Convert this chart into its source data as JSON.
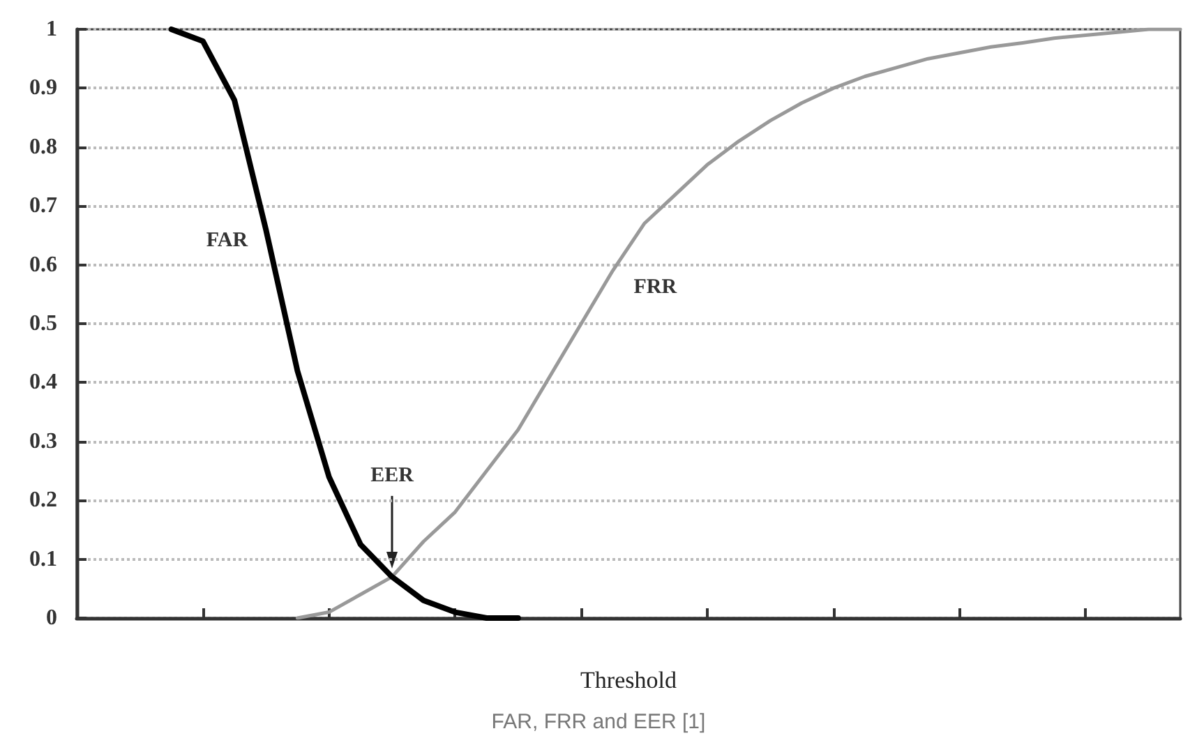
{
  "chart_data": {
    "type": "line",
    "xlabel": "Threshold",
    "tick_labels": "y",
    "grid": "y",
    "legend": false,
    "marker": "none",
    "categories": [
      null,
      null,
      null,
      null,
      null,
      null,
      null,
      null,
      null,
      null,
      null,
      null,
      null,
      null,
      null,
      null,
      null,
      null,
      null,
      null,
      null,
      null,
      null,
      null,
      null,
      null,
      null,
      null,
      null,
      null,
      null,
      null,
      null,
      null,
      null,
      null
    ],
    "ylim": [
      0,
      1
    ],
    "yticks": [
      0,
      0.1,
      0.2,
      0.3,
      0.4,
      0.5,
      0.6,
      0.7,
      0.8,
      0.9,
      1
    ],
    "series": [
      {
        "name": "FAR",
        "color": "#000000",
        "values": [
          null,
          null,
          null,
          1,
          0.98,
          0.88,
          0.66,
          0.42,
          0.24,
          0.125,
          0.07,
          0.03,
          0.01,
          0,
          0,
          null,
          null,
          null,
          null,
          null,
          null,
          null,
          null,
          null,
          null,
          null,
          null,
          null,
          null,
          null,
          null,
          null,
          null,
          null,
          null,
          null
        ]
      },
      {
        "name": "FRR",
        "color": "#999999",
        "values": [
          null,
          null,
          null,
          null,
          null,
          null,
          null,
          0,
          0.01,
          0.04,
          0.07,
          0.13,
          0.18,
          0.25,
          0.32,
          0.41,
          0.5,
          0.59,
          0.67,
          0.72,
          0.77,
          0.81,
          0.845,
          0.875,
          0.9,
          0.92,
          0.935,
          0.95,
          0.96,
          0.97,
          0.977,
          0.985,
          0.99,
          0.995,
          1,
          1
        ]
      }
    ],
    "annotations": [
      "EER",
      "FAR, FRR and EER [1]"
    ]
  }
}
